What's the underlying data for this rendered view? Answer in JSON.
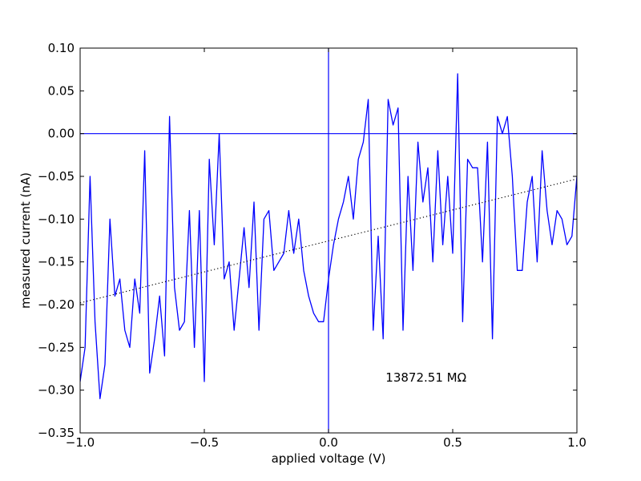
{
  "chart_data": {
    "type": "line",
    "title": "",
    "xlabel": "applied voltage (V)",
    "ylabel": "measured current (nA)",
    "xlim": [
      -1.0,
      1.0
    ],
    "ylim": [
      -0.35,
      0.1
    ],
    "x_ticks": [
      "−1.0",
      "−0.5",
      "0.0",
      "0.5",
      "1.0"
    ],
    "y_ticks": [
      "0.10",
      "0.05",
      "0.00",
      "−0.05",
      "−0.10",
      "−0.15",
      "−0.20",
      "−0.25",
      "−0.30",
      "−0.35"
    ],
    "x_tick_values": [
      -1.0,
      -0.5,
      0.0,
      0.5,
      1.0
    ],
    "y_tick_values": [
      0.1,
      0.05,
      0.0,
      -0.05,
      -0.1,
      -0.15,
      -0.2,
      -0.25,
      -0.3,
      -0.35
    ],
    "grid": false,
    "reference_lines": {
      "vertical_x": 0.0,
      "horizontal_y": 0.0,
      "color": "#0000ff"
    },
    "annotation": "13872.51 MΩ",
    "annotation_pos": {
      "x": 0.23,
      "y": -0.29
    },
    "series": [
      {
        "style": "solid",
        "color": "#0000ff",
        "x": [
          -1.0,
          -0.98,
          -0.96,
          -0.94,
          -0.92,
          -0.9,
          -0.88,
          -0.86,
          -0.84,
          -0.82,
          -0.8,
          -0.78,
          -0.76,
          -0.74,
          -0.72,
          -0.7,
          -0.68,
          -0.66,
          -0.64,
          -0.62,
          -0.6,
          -0.58,
          -0.56,
          -0.54,
          -0.52,
          -0.5,
          -0.48,
          -0.46,
          -0.44,
          -0.42,
          -0.4,
          -0.38,
          -0.36,
          -0.34,
          -0.32,
          -0.3,
          -0.28,
          -0.26,
          -0.24,
          -0.22,
          -0.2,
          -0.18,
          -0.16,
          -0.14,
          -0.12,
          -0.1,
          -0.08,
          -0.06,
          -0.04,
          -0.02,
          0.0,
          0.02,
          0.04,
          0.06,
          0.08,
          0.1,
          0.12,
          0.14,
          0.16,
          0.18,
          0.2,
          0.22,
          0.24,
          0.26,
          0.28,
          0.3,
          0.32,
          0.34,
          0.36,
          0.38,
          0.4,
          0.42,
          0.44,
          0.46,
          0.48,
          0.5,
          0.52,
          0.54,
          0.56,
          0.58,
          0.6,
          0.62,
          0.64,
          0.66,
          0.68,
          0.7,
          0.72,
          0.74,
          0.76,
          0.78,
          0.8,
          0.82,
          0.84,
          0.86,
          0.88,
          0.9,
          0.92,
          0.94,
          0.96,
          0.98,
          1.0
        ],
        "y": [
          -0.29,
          -0.25,
          -0.05,
          -0.22,
          -0.31,
          -0.27,
          -0.1,
          -0.19,
          -0.17,
          -0.23,
          -0.25,
          -0.17,
          -0.21,
          -0.02,
          -0.28,
          -0.24,
          -0.19,
          -0.26,
          0.02,
          -0.18,
          -0.23,
          -0.22,
          -0.09,
          -0.25,
          -0.09,
          -0.29,
          -0.03,
          -0.13,
          0.0,
          -0.17,
          -0.15,
          -0.23,
          -0.17,
          -0.11,
          -0.18,
          -0.08,
          -0.23,
          -0.1,
          -0.09,
          -0.16,
          -0.15,
          -0.14,
          -0.09,
          -0.14,
          -0.1,
          -0.16,
          -0.19,
          -0.21,
          -0.22,
          -0.22,
          -0.17,
          -0.13,
          -0.1,
          -0.08,
          -0.05,
          -0.1,
          -0.03,
          -0.01,
          0.04,
          -0.23,
          -0.12,
          -0.24,
          0.04,
          0.01,
          0.03,
          -0.23,
          -0.05,
          -0.16,
          -0.01,
          -0.08,
          -0.04,
          -0.15,
          -0.02,
          -0.13,
          -0.05,
          -0.14,
          0.07,
          -0.22,
          -0.03,
          -0.04,
          -0.04,
          -0.15,
          -0.01,
          -0.24,
          0.02,
          0.0,
          0.02,
          -0.05,
          -0.16,
          -0.16,
          -0.08,
          -0.05,
          -0.15,
          -0.02,
          -0.09,
          -0.13,
          -0.09,
          -0.1,
          -0.13,
          -0.12,
          -0.05
        ]
      },
      {
        "style": "dotted",
        "color": "#000000",
        "x": [
          -1.0,
          1.0
        ],
        "y": [
          -0.198,
          -0.053
        ]
      }
    ]
  }
}
